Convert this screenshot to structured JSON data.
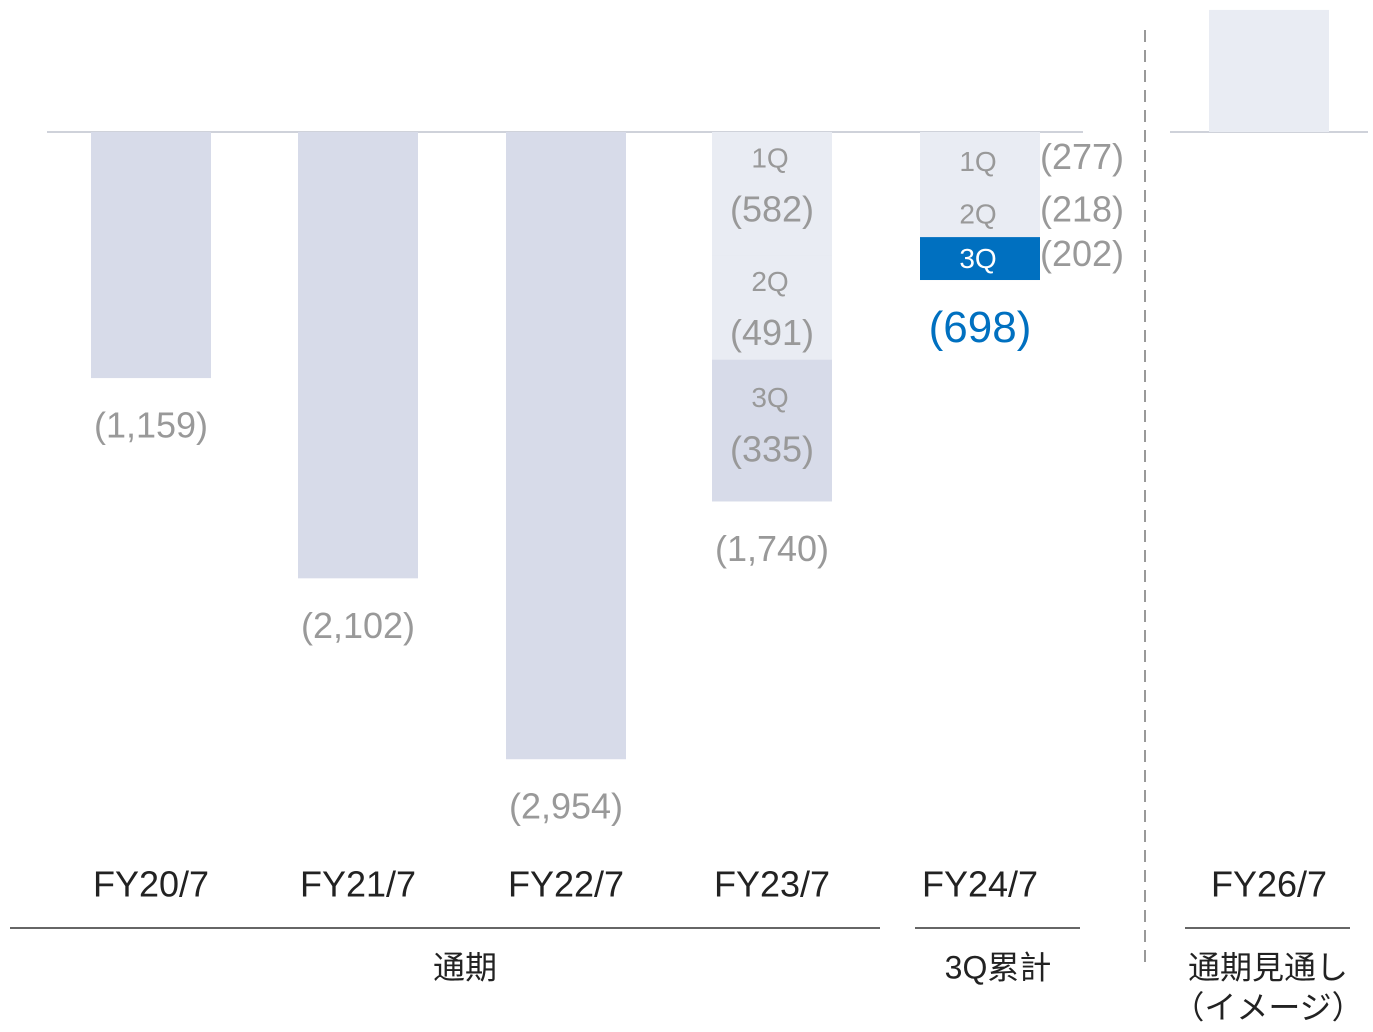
{
  "chart_data": {
    "type": "bar",
    "categories": [
      "FY20/7",
      "FY21/7",
      "FY22/7",
      "FY23/7",
      "FY24/7",
      "FY26/7"
    ],
    "values": [
      -1159,
      -2102,
      -2954,
      -1740,
      -698,
      575
    ],
    "value_labels": [
      "(1,159)",
      "(2,102)",
      "(2,954)",
      "(1,740)",
      "(698)",
      null
    ],
    "colors": [
      "#d7dbe9",
      "#d7dbe9",
      "#d7dbe9",
      "#d7dbe9",
      "#e9ecf3",
      "#e9ecf3"
    ],
    "series": [
      {
        "name": "1Q",
        "color": "#e9ecf3",
        "values": [
          null,
          null,
          null,
          -582,
          -277,
          null
        ],
        "value_labels": [
          null,
          null,
          null,
          "(582)",
          "(277)",
          null
        ]
      },
      {
        "name": "2Q",
        "color": "#e9ecf3",
        "values": [
          null,
          null,
          null,
          -491,
          -218,
          null
        ],
        "value_labels": [
          null,
          null,
          null,
          "(491)",
          "(218)",
          null
        ]
      },
      {
        "name": "3Q",
        "color": "#d7dbe9",
        "values": [
          null,
          null,
          null,
          -335,
          -202,
          null
        ],
        "value_labels": [
          null,
          null,
          null,
          "(335)",
          "(202)",
          null
        ]
      }
    ],
    "highlight_color": "#0070c0",
    "ylim": [
      -3000,
      600
    ],
    "group_labels": [
      "通期",
      "3Q累計",
      "通期見通し",
      "（イメージ）"
    ]
  }
}
